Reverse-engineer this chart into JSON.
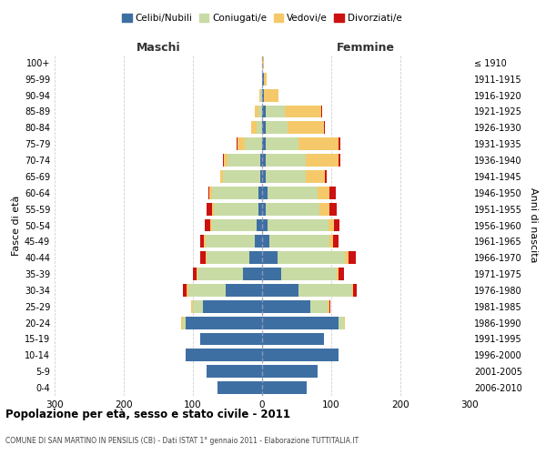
{
  "age_groups": [
    "0-4",
    "5-9",
    "10-14",
    "15-19",
    "20-24",
    "25-29",
    "30-34",
    "35-39",
    "40-44",
    "45-49",
    "50-54",
    "55-59",
    "60-64",
    "65-69",
    "70-74",
    "75-79",
    "80-84",
    "85-89",
    "90-94",
    "95-99",
    "100+"
  ],
  "year_labels": [
    "2006-2010",
    "2001-2005",
    "1996-2000",
    "1991-1995",
    "1986-1990",
    "1981-1985",
    "1976-1980",
    "1971-1975",
    "1966-1970",
    "1961-1965",
    "1956-1960",
    "1951-1955",
    "1946-1950",
    "1941-1945",
    "1936-1940",
    "1931-1935",
    "1926-1930",
    "1921-1925",
    "1916-1920",
    "1911-1915",
    "≤ 1910"
  ],
  "colors": {
    "celibi": "#3e6fa3",
    "coniugati": "#c8dba5",
    "vedovi": "#f5c96a",
    "divorziati": "#cc1111"
  },
  "maschi": {
    "celibi": [
      65,
      80,
      110,
      90,
      110,
      85,
      52,
      28,
      18,
      10,
      8,
      5,
      5,
      2,
      2,
      0,
      0,
      0,
      0,
      0,
      0
    ],
    "coniugati": [
      0,
      0,
      0,
      0,
      5,
      15,
      55,
      65,
      62,
      72,
      65,
      65,
      68,
      55,
      48,
      25,
      8,
      5,
      2,
      0,
      0
    ],
    "vedovi": [
      0,
      0,
      0,
      0,
      2,
      2,
      2,
      2,
      2,
      2,
      2,
      2,
      3,
      3,
      5,
      10,
      8,
      5,
      2,
      0,
      0
    ],
    "divorziati": [
      0,
      0,
      0,
      0,
      0,
      0,
      5,
      5,
      8,
      5,
      8,
      8,
      2,
      0,
      2,
      2,
      0,
      0,
      0,
      0,
      0
    ]
  },
  "femmine": {
    "celibi": [
      65,
      80,
      110,
      90,
      110,
      70,
      52,
      28,
      22,
      10,
      8,
      5,
      8,
      5,
      5,
      5,
      5,
      5,
      2,
      2,
      0
    ],
    "coniugati": [
      0,
      0,
      0,
      0,
      8,
      25,
      78,
      80,
      98,
      88,
      88,
      78,
      72,
      58,
      58,
      48,
      32,
      28,
      0,
      0,
      0
    ],
    "vedovi": [
      0,
      0,
      0,
      0,
      2,
      2,
      2,
      2,
      5,
      5,
      8,
      15,
      18,
      28,
      48,
      58,
      52,
      52,
      22,
      5,
      2
    ],
    "divorziati": [
      0,
      0,
      0,
      0,
      0,
      2,
      5,
      8,
      10,
      8,
      8,
      10,
      8,
      2,
      2,
      2,
      2,
      2,
      0,
      0,
      0
    ]
  },
  "title": "Popolazione per età, sesso e stato civile - 2011",
  "subtitle": "COMUNE DI SAN MARTINO IN PENSILIS (CB) - Dati ISTAT 1° gennaio 2011 - Elaborazione TUTTITALIA.IT",
  "xlabel_left": "Maschi",
  "xlabel_right": "Femmine",
  "ylabel_left": "Fasce di età",
  "ylabel_right": "Anni di nascita",
  "xlim": 300,
  "bg_color": "#ffffff",
  "grid_color": "#bbbbbb",
  "legend_labels": [
    "Celibi/Nubili",
    "Coniugati/e",
    "Vedovi/e",
    "Divorziati/e"
  ]
}
